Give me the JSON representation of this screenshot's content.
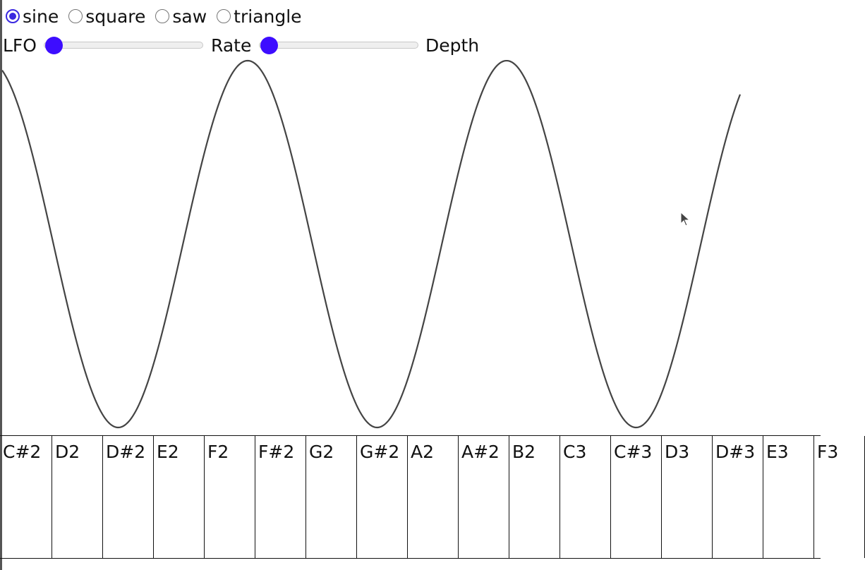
{
  "waveform": {
    "options": [
      {
        "label": "sine",
        "checked": true
      },
      {
        "label": "square",
        "checked": false
      },
      {
        "label": "saw",
        "checked": false
      },
      {
        "label": "triangle",
        "checked": false
      }
    ]
  },
  "controls": {
    "lfo_label": "LFO",
    "rate_label": "Rate",
    "depth_label": "Depth",
    "rate_value": 0,
    "depth_value": 0
  },
  "colors": {
    "accent": "#3d0dff",
    "wave_stroke": "#444444"
  },
  "icons": {
    "cursor": "mouse-pointer-icon"
  },
  "keyboard": {
    "keys": [
      "C#2",
      "D2",
      "D#2",
      "E2",
      "F2",
      "F#2",
      "G2",
      "G#2",
      "A2",
      "A#2",
      "B2",
      "C3",
      "C#3",
      "D3",
      "D#3",
      "E3",
      "F3"
    ]
  }
}
